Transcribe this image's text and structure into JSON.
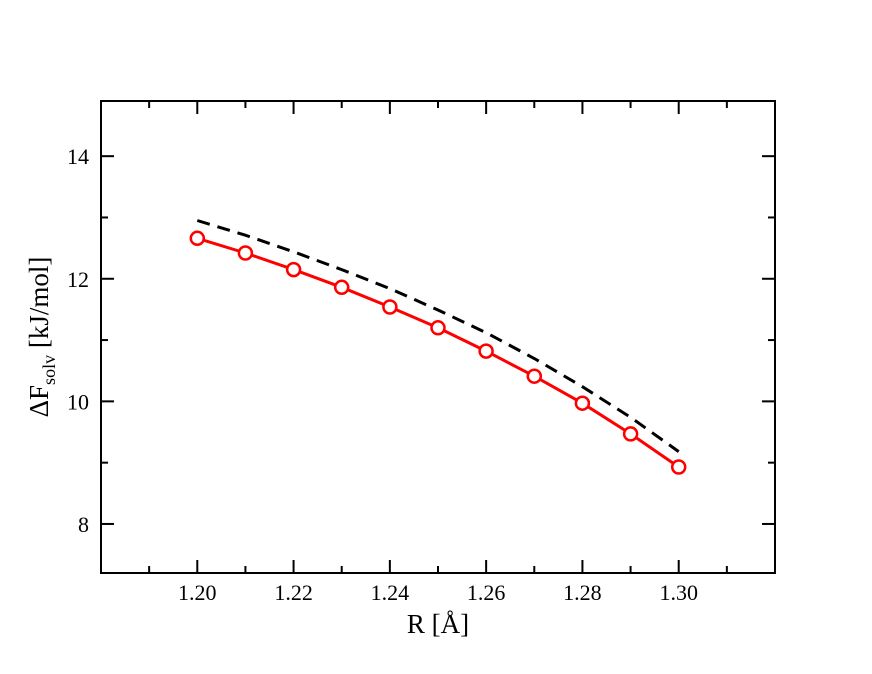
{
  "chart_data": {
    "type": "line",
    "xlabel": "R [Å]",
    "ylabel_main": "ΔF",
    "ylabel_sub": "solv",
    "ylabel_unit": " [kJ/mol]",
    "xlim": [
      1.18,
      1.32
    ],
    "ylim": [
      7.2,
      14.9
    ],
    "x_ticks": [
      1.2,
      1.22,
      1.24,
      1.26,
      1.28,
      1.3
    ],
    "x_tick_labels": [
      "1.20",
      "1.22",
      "1.24",
      "1.26",
      "1.28",
      "1.30"
    ],
    "x_minor_ticks": [
      1.19,
      1.21,
      1.23,
      1.25,
      1.27,
      1.29,
      1.31
    ],
    "y_ticks": [
      8,
      10,
      12,
      14
    ],
    "y_tick_labels": [
      "8",
      "10",
      "12",
      "14"
    ],
    "y_minor_ticks": [
      9,
      11,
      13
    ],
    "grid": false,
    "series": [
      {
        "style": "solid-with-circle-markers",
        "color": "#ff0000",
        "x": [
          1.2,
          1.21,
          1.22,
          1.23,
          1.24,
          1.25,
          1.26,
          1.27,
          1.28,
          1.29,
          1.3
        ],
        "y": [
          12.66,
          12.42,
          12.15,
          11.86,
          11.54,
          11.2,
          10.82,
          10.41,
          9.97,
          9.47,
          8.93
        ]
      },
      {
        "style": "dashed",
        "color": "#000000",
        "x": [
          1.2,
          1.21,
          1.22,
          1.23,
          1.24,
          1.25,
          1.26,
          1.27,
          1.28,
          1.29,
          1.3
        ],
        "y": [
          12.95,
          12.71,
          12.44,
          12.15,
          11.84,
          11.49,
          11.12,
          10.7,
          10.24,
          9.74,
          9.18
        ]
      }
    ]
  }
}
